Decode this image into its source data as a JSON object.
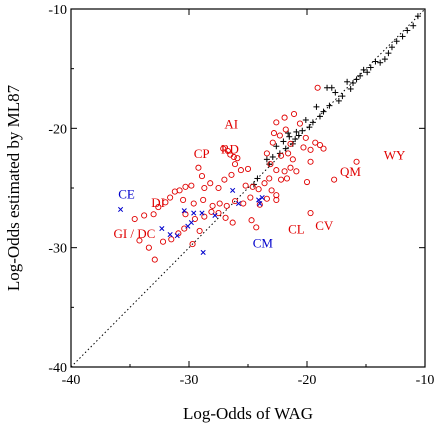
{
  "chart_data": {
    "type": "scatter",
    "title": "",
    "xlabel": "Log-Odds of WAG",
    "ylabel": "Log-Odds estimated by ML87",
    "xlim": [
      -40,
      -10
    ],
    "ylim": [
      -40,
      -10
    ],
    "xticks": [
      -40,
      -30,
      -20,
      -10
    ],
    "yticks": [
      -40,
      -30,
      -20,
      -10
    ],
    "xtick_labels": [
      "-40",
      "-30",
      "-20",
      "-10"
    ],
    "ytick_labels": [
      "-40",
      "-30",
      "-20",
      "-10"
    ],
    "grid": false,
    "diagonal": {
      "from": [
        -40,
        -40
      ],
      "to": [
        -10,
        -10
      ],
      "style": "dotted"
    },
    "colors": {
      "black_series": "#000000",
      "red_series": "#e00000",
      "blue_series": "#0000cc"
    },
    "series": [
      {
        "marker": "plus",
        "color": "#000000",
        "points": [
          [
            -10.6,
            -10.6
          ],
          [
            -11.0,
            -11.4
          ],
          [
            -11.5,
            -11.8
          ],
          [
            -11.9,
            -12.3
          ],
          [
            -12.4,
            -12.7
          ],
          [
            -12.8,
            -13.2
          ],
          [
            -13.1,
            -13.7
          ],
          [
            -13.4,
            -14.2
          ],
          [
            -13.8,
            -14.5
          ],
          [
            -14.2,
            -14.4
          ],
          [
            -14.6,
            -14.9
          ],
          [
            -14.9,
            -15.3
          ],
          [
            -15.2,
            -15.1
          ],
          [
            -15.5,
            -15.6
          ],
          [
            -15.8,
            -15.9
          ],
          [
            -16.1,
            -16.2
          ],
          [
            -16.3,
            -16.7
          ],
          [
            -16.6,
            -16.1
          ],
          [
            -17.0,
            -17.3
          ],
          [
            -17.3,
            -17.7
          ],
          [
            -17.6,
            -17.0
          ],
          [
            -17.9,
            -16.6
          ],
          [
            -18.1,
            -18.1
          ],
          [
            -18.3,
            -16.6
          ],
          [
            -18.6,
            -18.6
          ],
          [
            -18.9,
            -19.0
          ],
          [
            -19.2,
            -18.2
          ],
          [
            -19.5,
            -19.5
          ],
          [
            -19.8,
            -19.9
          ],
          [
            -20.1,
            -19.3
          ],
          [
            -20.4,
            -20.2
          ],
          [
            -20.7,
            -20.6
          ],
          [
            -21.0,
            -20.9
          ],
          [
            -21.2,
            -21.3
          ],
          [
            -21.5,
            -20.7
          ],
          [
            -21.8,
            -21.7
          ],
          [
            -22.0,
            -21.1
          ],
          [
            -22.3,
            -22.1
          ],
          [
            -22.6,
            -21.5
          ],
          [
            -22.9,
            -22.4
          ],
          [
            -23.2,
            -23.0
          ],
          [
            -23.4,
            -22.6
          ],
          [
            -24.2,
            -24.2
          ],
          [
            -24.5,
            -24.7
          ],
          [
            -20.9,
            -20.3
          ],
          [
            -21.6,
            -20.4
          ]
        ]
      },
      {
        "marker": "circle",
        "color": "#e00000",
        "points": [
          [
            -19.1,
            -16.6
          ],
          [
            -21.1,
            -18.8
          ],
          [
            -22.6,
            -19.5
          ],
          [
            -22.8,
            -20.4
          ],
          [
            -21.9,
            -19.1
          ],
          [
            -20.6,
            -19.6
          ],
          [
            -21.4,
            -21.3
          ],
          [
            -21.8,
            -20.1
          ],
          [
            -22.3,
            -20.6
          ],
          [
            -22.9,
            -21.2
          ],
          [
            -20.3,
            -21.6
          ],
          [
            -20.1,
            -20.8
          ],
          [
            -19.7,
            -21.8
          ],
          [
            -19.3,
            -21.2
          ],
          [
            -19.7,
            -22.8
          ],
          [
            -18.9,
            -21.4
          ],
          [
            -18.6,
            -21.7
          ],
          [
            -15.8,
            -22.8
          ],
          [
            -17.7,
            -24.3
          ],
          [
            -20.0,
            -24.5
          ],
          [
            -20.9,
            -23.6
          ],
          [
            -21.4,
            -23.3
          ],
          [
            -21.2,
            -22.6
          ],
          [
            -21.6,
            -22.1
          ],
          [
            -22.2,
            -22.3
          ],
          [
            -23.1,
            -23.0
          ],
          [
            -22.6,
            -23.5
          ],
          [
            -21.9,
            -23.6
          ],
          [
            -21.7,
            -24.2
          ],
          [
            -23.2,
            -24.2
          ],
          [
            -23.6,
            -24.6
          ],
          [
            -23.0,
            -25.2
          ],
          [
            -22.6,
            -25.6
          ],
          [
            -24.1,
            -25.1
          ],
          [
            -24.6,
            -24.9
          ],
          [
            -25.2,
            -24.8
          ],
          [
            -25.0,
            -23.4
          ],
          [
            -25.9,
            -22.5
          ],
          [
            -26.5,
            -22.2
          ],
          [
            -26.2,
            -22.4
          ],
          [
            -27.1,
            -21.7
          ],
          [
            -26.7,
            -21.9
          ],
          [
            -26.1,
            -23.0
          ],
          [
            -25.6,
            -23.5
          ],
          [
            -26.4,
            -23.9
          ],
          [
            -27.0,
            -24.3
          ],
          [
            -27.5,
            -25.0
          ],
          [
            -28.2,
            -24.6
          ],
          [
            -28.7,
            -25.0
          ],
          [
            -29.2,
            -23.3
          ],
          [
            -28.9,
            -24.0
          ],
          [
            -29.8,
            -24.8
          ],
          [
            -30.3,
            -24.9
          ],
          [
            -30.8,
            -25.2
          ],
          [
            -31.2,
            -25.3
          ],
          [
            -31.6,
            -25.8
          ],
          [
            -32.0,
            -26.2
          ],
          [
            -32.6,
            -26.6
          ],
          [
            -33.0,
            -27.2
          ],
          [
            -33.8,
            -27.3
          ],
          [
            -34.6,
            -27.6
          ],
          [
            -30.5,
            -26.0
          ],
          [
            -29.6,
            -26.3
          ],
          [
            -28.8,
            -26.0
          ],
          [
            -28.0,
            -26.5
          ],
          [
            -27.4,
            -26.3
          ],
          [
            -26.8,
            -26.5
          ],
          [
            -26.1,
            -26.1
          ],
          [
            -25.4,
            -26.3
          ],
          [
            -24.8,
            -25.8
          ],
          [
            -24.0,
            -26.4
          ],
          [
            -23.4,
            -25.9
          ],
          [
            -22.6,
            -26.0
          ],
          [
            -30.3,
            -27.2
          ],
          [
            -29.5,
            -27.6
          ],
          [
            -28.7,
            -27.4
          ],
          [
            -28.1,
            -27.0
          ],
          [
            -27.5,
            -27.1
          ],
          [
            -26.9,
            -27.5
          ],
          [
            -26.3,
            -27.9
          ],
          [
            -29.1,
            -28.6
          ],
          [
            -30.4,
            -28.4
          ],
          [
            -30.9,
            -28.8
          ],
          [
            -31.5,
            -29.3
          ],
          [
            -32.2,
            -29.5
          ],
          [
            -33.4,
            -30.0
          ],
          [
            -34.2,
            -29.4
          ],
          [
            -32.9,
            -31.0
          ],
          [
            -29.7,
            -29.7
          ],
          [
            -24.3,
            -28.3
          ],
          [
            -19.7,
            -27.1
          ],
          [
            -24.7,
            -27.7
          ],
          [
            -23.4,
            -22.1
          ],
          [
            -22.2,
            -24.3
          ]
        ]
      },
      {
        "marker": "cross",
        "color": "#0000cc",
        "points": [
          [
            -35.8,
            -26.8
          ],
          [
            -32.3,
            -28.4
          ],
          [
            -31.6,
            -28.9
          ],
          [
            -31.0,
            -29.0
          ],
          [
            -30.4,
            -26.9
          ],
          [
            -30.1,
            -28.2
          ],
          [
            -29.8,
            -27.9
          ],
          [
            -29.6,
            -27.1
          ],
          [
            -28.9,
            -27.1
          ],
          [
            -28.8,
            -30.4
          ],
          [
            -27.8,
            -27.3
          ],
          [
            -26.3,
            -25.2
          ],
          [
            -25.8,
            -26.3
          ],
          [
            -24.1,
            -26.0
          ],
          [
            -24.0,
            -26.3
          ],
          [
            -23.8,
            -25.8
          ]
        ]
      }
    ],
    "annotations": [
      {
        "text": "AI",
        "x": -27.0,
        "y": -20.0,
        "color": "#e00000"
      },
      {
        "text": "CP",
        "x": -29.6,
        "y": -22.5,
        "color": "#e00000"
      },
      {
        "text": "RD",
        "x": -27.3,
        "y": -22.1,
        "color": "#e00000"
      },
      {
        "text": "WY",
        "x": -13.5,
        "y": -22.6,
        "color": "#e00000"
      },
      {
        "text": "QM",
        "x": -17.2,
        "y": -24.0,
        "color": "#e00000"
      },
      {
        "text": "CE",
        "x": -36.0,
        "y": -25.9,
        "color": "#0000cc"
      },
      {
        "text": "DI",
        "x": -33.2,
        "y": -26.6,
        "color": "#e00000"
      },
      {
        "text": "CL",
        "x": -21.6,
        "y": -28.8,
        "color": "#e00000"
      },
      {
        "text": "CV",
        "x": -19.3,
        "y": -28.5,
        "color": "#e00000"
      },
      {
        "text": "GI / DC",
        "x": -36.4,
        "y": -29.2,
        "color": "#e00000"
      },
      {
        "text": "CM",
        "x": -24.6,
        "y": -30.0,
        "color": "#0000cc"
      }
    ]
  }
}
